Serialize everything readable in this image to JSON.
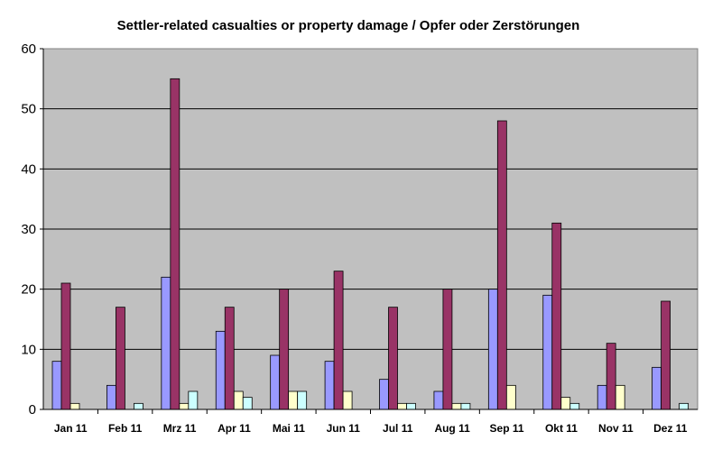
{
  "chart_data": {
    "type": "bar",
    "title": "Settler-related casualties or property damage / Opfer oder Zerstörungen",
    "xlabel": "",
    "ylabel": "",
    "ylim": [
      0,
      60
    ],
    "yticks": [
      0,
      10,
      20,
      30,
      40,
      50,
      60
    ],
    "grid": true,
    "legend": "none",
    "plot_background": "#c0c0c0",
    "categories": [
      "Jan 11",
      "Feb 11",
      "Mrz 11",
      "Apr 11",
      "Mai 11",
      "Jun 11",
      "Jul 11",
      "Aug 11",
      "Sep 11",
      "Okt 11",
      "Nov 11",
      "Dez 11"
    ],
    "series": [
      {
        "color": "#9999ff",
        "values": [
          8,
          4,
          22,
          13,
          9,
          8,
          5,
          3,
          20,
          19,
          4,
          7
        ]
      },
      {
        "color": "#993366",
        "values": [
          21,
          17,
          55,
          17,
          20,
          23,
          17,
          20,
          48,
          31,
          11,
          18
        ]
      },
      {
        "color": "#ffffcc",
        "values": [
          1,
          0,
          1,
          3,
          3,
          3,
          1,
          1,
          4,
          2,
          4,
          0
        ]
      },
      {
        "color": "#ccffff",
        "values": [
          0,
          1,
          3,
          2,
          3,
          0,
          1,
          1,
          0,
          1,
          0,
          1
        ]
      }
    ]
  }
}
